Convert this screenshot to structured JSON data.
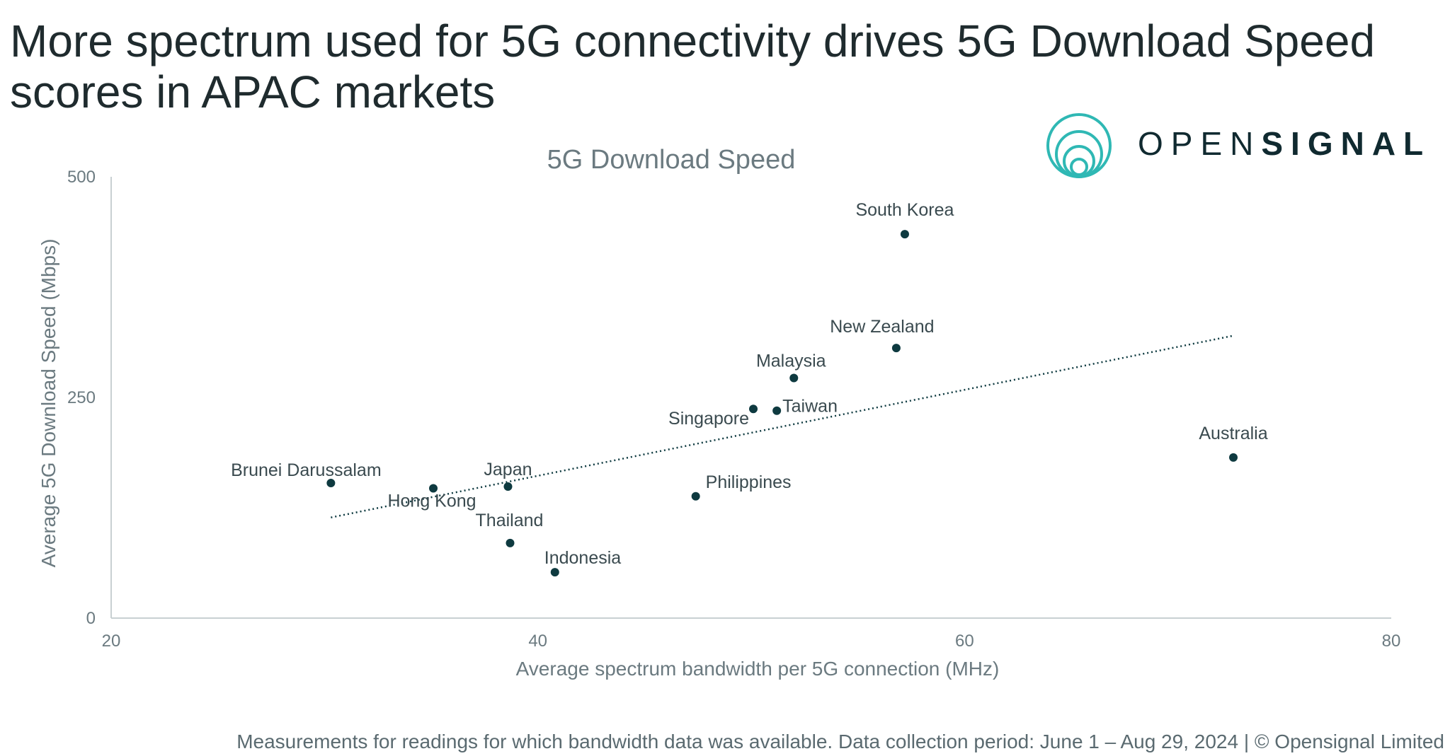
{
  "headline": "More spectrum used for 5G connectivity drives 5G Download Speed scores in APAC markets",
  "brand": {
    "name_light": "OPEN",
    "name_bold": "SIGNAL"
  },
  "footnote": "Measurements for readings for which bandwidth data was available. Data collection period: June 1 – Aug 29, 2024 | © Opensignal Limited",
  "colors": {
    "point": "#0e3a40",
    "axis": "#c8d0d2",
    "text": "#6b7a80"
  },
  "chart_data": {
    "type": "scatter",
    "title": "5G Download Speed",
    "xlabel": "Average spectrum bandwidth per 5G connection (MHz)",
    "ylabel": "Average 5G Download Speed (Mbps)",
    "xlim": [
      20,
      80
    ],
    "ylim": [
      0,
      500
    ],
    "xticks": [
      20,
      40,
      60,
      80
    ],
    "yticks": [
      0,
      250,
      500
    ],
    "points": [
      {
        "label": "South Korea",
        "x": 57.2,
        "y": 435
      },
      {
        "label": "New Zealand",
        "x": 56.8,
        "y": 306
      },
      {
        "label": "Malaysia",
        "x": 52.0,
        "y": 272
      },
      {
        "label": "Singapore",
        "x": 50.1,
        "y": 237
      },
      {
        "label": "Taiwan",
        "x": 51.2,
        "y": 235
      },
      {
        "label": "Australia",
        "x": 72.6,
        "y": 182
      },
      {
        "label": "Brunei Darussalam",
        "x": 30.3,
        "y": 153
      },
      {
        "label": "Japan",
        "x": 38.6,
        "y": 149
      },
      {
        "label": "Hong Kong",
        "x": 35.1,
        "y": 147
      },
      {
        "label": "Philippines",
        "x": 47.4,
        "y": 138
      },
      {
        "label": "Thailand",
        "x": 38.7,
        "y": 85
      },
      {
        "label": "Indonesia",
        "x": 40.8,
        "y": 52
      }
    ],
    "trendline": {
      "style": "dotted",
      "x": [
        30.3,
        72.6
      ],
      "y": [
        114,
        320
      ]
    }
  }
}
